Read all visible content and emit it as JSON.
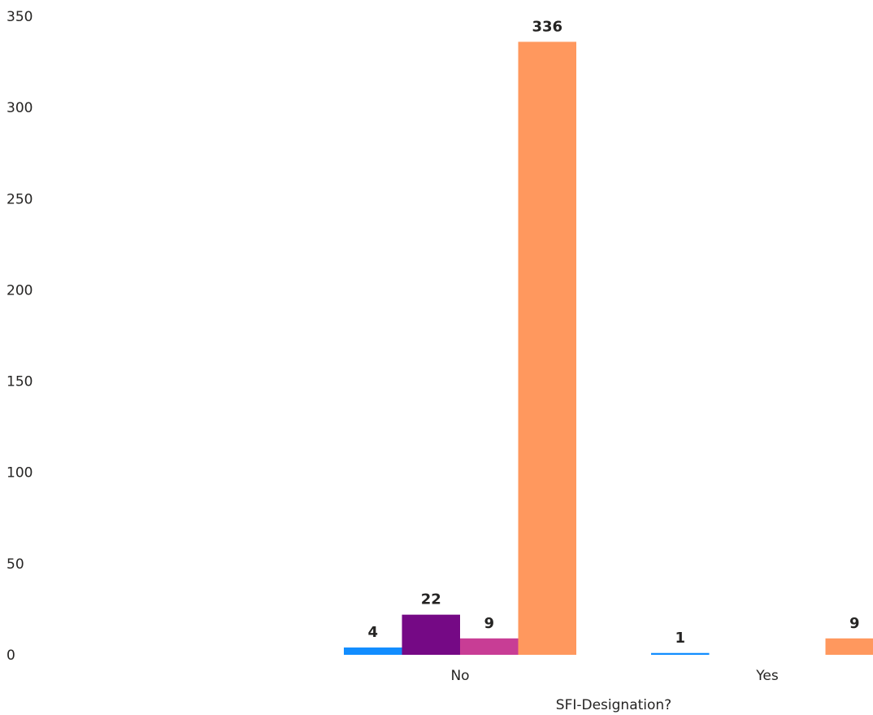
{
  "chart_data": {
    "type": "bar",
    "title": "",
    "xlabel": "SFI-Designation?",
    "ylabel": "",
    "ylim": [
      0,
      350
    ],
    "yticks": [
      0,
      50,
      100,
      150,
      200,
      250,
      300,
      350
    ],
    "grid": false,
    "categories": [
      "No",
      "Yes"
    ],
    "series": [
      {
        "color": "#118DFF",
        "values": [
          4,
          1
        ]
      },
      {
        "color": "#750985",
        "values": [
          22,
          null
        ]
      },
      {
        "color": "#C83D95",
        "values": [
          9,
          null
        ]
      },
      {
        "color": "#FF985E",
        "values": [
          336,
          9
        ]
      }
    ]
  }
}
